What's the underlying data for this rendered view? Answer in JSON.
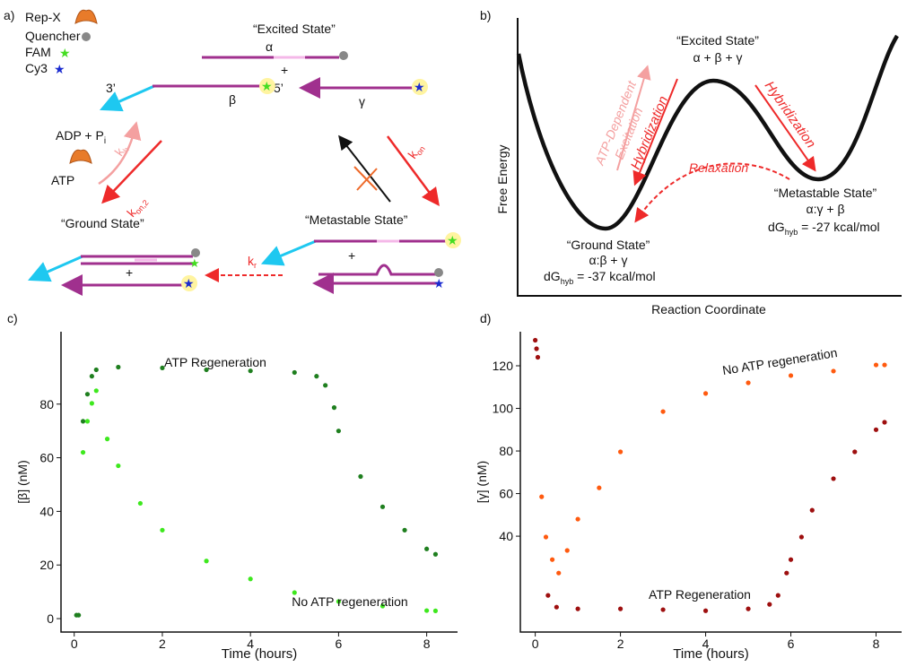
{
  "panel_a": {
    "label": "a)",
    "legend": {
      "repx": "Rep-X",
      "quencher": "Quencher",
      "fam": "FAM",
      "cy3": "Cy3"
    },
    "excited_state": "“Excited State”",
    "alpha": "α",
    "plus_top": "+",
    "three_prime": "3’",
    "beta": "β",
    "five_prime": "5’",
    "gamma": "γ",
    "adp": {
      "main": "ADP + P",
      "sub": "i"
    },
    "atp": "ATP",
    "k_h": {
      "main": "k",
      "sub": "h"
    },
    "k_on2": {
      "main": "k",
      "sub": "on,2"
    },
    "k_on": {
      "main": "k",
      "sub": "on"
    },
    "ground_state": "“Ground State”",
    "metastable_state": "“Metastable State”",
    "plus_ground": "+",
    "plus_meta": "+",
    "k_r": {
      "main": "k",
      "sub": "r"
    }
  },
  "panel_b": {
    "label": "b)",
    "ylabel": "Free Energy",
    "xlabel": "Reaction Coordinate",
    "excited_state": "“Excited State”",
    "excited_eq": "α + β + γ",
    "atp_excitation": [
      "ATP-Dependent",
      "Excitation"
    ],
    "hyb_left": "Hybridization",
    "hyb_right": "Hybridization",
    "relaxation": "Relaxation",
    "metastable_state": "“Metastable State”",
    "metastable_eq": "α:γ + β",
    "metastable_dg": {
      "main": "dG",
      "sub": "hyb",
      "rest": " = -27 kcal/mol"
    },
    "ground_state": "“Ground State”",
    "ground_eq": "α:β + γ",
    "ground_dg": {
      "main": "dG",
      "sub": "hyb",
      "rest": " = -37 kcal/mol"
    }
  },
  "chart_data": [
    {
      "type": "scatter",
      "panel": "c)",
      "xlabel": "Time (hours)",
      "ylabel": "[β] (nM)",
      "xlim": [
        -0.3,
        8.7
      ],
      "ylim": [
        -5,
        107
      ],
      "xticks": [
        0,
        2,
        4,
        6,
        8
      ],
      "yticks": [
        0,
        20,
        40,
        60,
        80
      ],
      "series": [
        {
          "name": "ATP Regeneration",
          "color": "#1f7f1f",
          "x": [
            0.05,
            0.1,
            0.2,
            0.3,
            0.4,
            0.5,
            1,
            2,
            3,
            4,
            5,
            5.5,
            5.7,
            5.9,
            6,
            6.5,
            7,
            7.5,
            8,
            8.2
          ],
          "values": [
            1.3,
            1.3,
            73.6,
            83.7,
            90.4,
            92.8,
            93.8,
            93.5,
            92.8,
            92.4,
            91.8,
            90.4,
            87,
            78.7,
            70,
            53,
            41.7,
            33,
            26,
            24
          ]
        },
        {
          "name": "No ATP regeneration",
          "color": "#3ee81e",
          "x": [
            0.2,
            0.3,
            0.4,
            0.5,
            0.75,
            1,
            1.5,
            2,
            3,
            4,
            5,
            6,
            7,
            8,
            8.2
          ],
          "values": [
            62,
            73.6,
            80.3,
            85,
            67,
            57,
            43,
            33,
            21.5,
            14.8,
            9.7,
            6.4,
            4.7,
            3,
            2.9
          ]
        }
      ]
    },
    {
      "type": "scatter",
      "panel": "d)",
      "xlabel": "Time (hours)",
      "ylabel": "[γ] (nM)",
      "xlim": [
        -0.35,
        8.6
      ],
      "ylim": [
        -5,
        136
      ],
      "xticks": [
        0,
        2,
        4,
        6,
        8
      ],
      "yticks": [
        40,
        60,
        80,
        100,
        120
      ],
      "series": [
        {
          "name": "No ATP regeneration",
          "color": "#ff5a0f",
          "x": [
            0.15,
            0.25,
            0.4,
            0.55,
            0.75,
            1,
            1.5,
            2,
            3,
            4,
            5,
            6,
            7,
            8,
            8.2
          ],
          "values": [
            58.5,
            39.6,
            29,
            22.7,
            33.3,
            48,
            62.7,
            79.6,
            98.5,
            107,
            112,
            115.4,
            117.5,
            120.4,
            120.4
          ]
        },
        {
          "name": "ATP Regeneration",
          "color": "#9e0f0f",
          "x": [
            0,
            0.03,
            0.06,
            0.3,
            0.5,
            1,
            2,
            3,
            4,
            5,
            5.5,
            5.7,
            5.9,
            6,
            6.25,
            6.5,
            7,
            7.5,
            8,
            8.2
          ],
          "values": [
            132,
            128,
            124,
            12.2,
            6.7,
            5.9,
            5.9,
            5.5,
            5,
            5.9,
            8,
            12.2,
            22.7,
            29,
            39.6,
            52.2,
            67,
            79.6,
            90,
            93.5
          ]
        }
      ]
    }
  ]
}
